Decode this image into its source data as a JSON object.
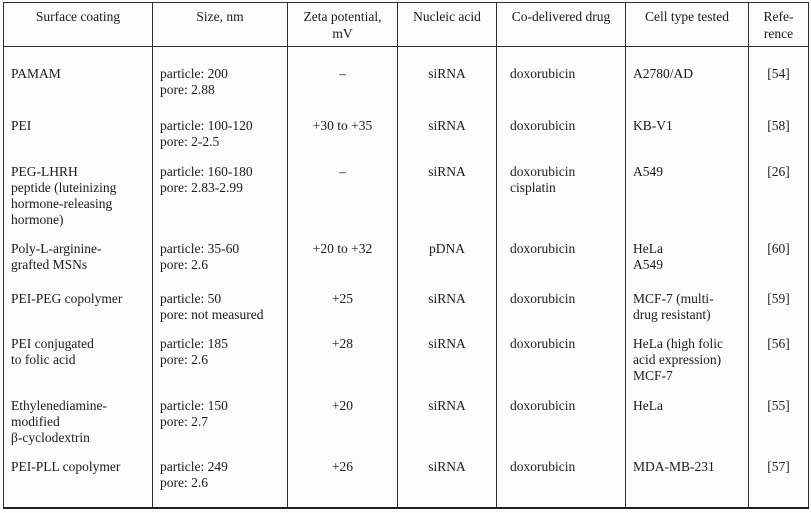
{
  "page": {
    "background_color": "#fcfcfa",
    "text_color": "#1b1b1b",
    "rule_color": "#2e2e2e"
  },
  "table": {
    "columns": [
      {
        "id": "surface_coating",
        "label_lines": [
          "Surface coating"
        ]
      },
      {
        "id": "size_nm",
        "label_lines": [
          "Size, nm"
        ]
      },
      {
        "id": "zeta_potential_mv",
        "label_lines": [
          "Zeta potential,",
          "mV"
        ]
      },
      {
        "id": "nucleic_acid",
        "label_lines": [
          "Nucleic acid"
        ]
      },
      {
        "id": "co_delivered_drug",
        "label_lines": [
          "Co-delivered drug"
        ]
      },
      {
        "id": "cell_type_tested",
        "label_lines": [
          "Cell type tested"
        ]
      },
      {
        "id": "reference",
        "label_lines": [
          "Refe-",
          "rence"
        ]
      }
    ],
    "rows": [
      {
        "surface_coating": [
          "PAMAM"
        ],
        "size_nm": [
          "particle: 200",
          "pore: 2.88"
        ],
        "zeta_potential_mv": [
          "–"
        ],
        "nucleic_acid": [
          "siRNA"
        ],
        "co_delivered_drug": [
          "doxorubicin"
        ],
        "cell_type_tested": [
          "A2780/AD"
        ],
        "reference": [
          "[54]"
        ]
      },
      {
        "surface_coating": [
          "PEI"
        ],
        "size_nm": [
          "particle: 100-120",
          "pore: 2-2.5"
        ],
        "zeta_potential_mv": [
          "+30 to +35"
        ],
        "nucleic_acid": [
          "siRNA"
        ],
        "co_delivered_drug": [
          "doxorubicin"
        ],
        "cell_type_tested": [
          "KB-V1"
        ],
        "reference": [
          "[58]"
        ]
      },
      {
        "surface_coating": [
          "PEG-LHRH",
          "peptide (luteinizing",
          "hormone-releasing",
          "hormone)"
        ],
        "size_nm": [
          "particle: 160-180",
          "pore: 2.83-2.99"
        ],
        "zeta_potential_mv": [
          "–"
        ],
        "nucleic_acid": [
          "siRNA"
        ],
        "co_delivered_drug": [
          "doxorubicin",
          "cisplatin"
        ],
        "cell_type_tested": [
          "A549"
        ],
        "reference": [
          "[26]"
        ]
      },
      {
        "surface_coating": [
          "Poly-L-arginine-",
          "grafted MSNs"
        ],
        "size_nm": [
          "particle: 35-60",
          "pore: 2.6"
        ],
        "zeta_potential_mv": [
          "+20 to +32"
        ],
        "nucleic_acid": [
          "pDNA"
        ],
        "co_delivered_drug": [
          "doxorubicin"
        ],
        "cell_type_tested": [
          "HeLa",
          "A549"
        ],
        "reference": [
          "[60]"
        ]
      },
      {
        "surface_coating": [
          "PEI-PEG copolymer"
        ],
        "size_nm": [
          "particle: 50",
          "pore: not measured"
        ],
        "zeta_potential_mv": [
          "+25"
        ],
        "nucleic_acid": [
          "siRNA"
        ],
        "co_delivered_drug": [
          "doxorubicin"
        ],
        "cell_type_tested": [
          "MCF-7 (multi-",
          "drug resistant)"
        ],
        "reference": [
          "[59]"
        ]
      },
      {
        "surface_coating": [
          "PEI conjugated",
          "to folic acid"
        ],
        "size_nm": [
          "particle: 185",
          "pore: 2.6"
        ],
        "zeta_potential_mv": [
          "+28"
        ],
        "nucleic_acid": [
          "siRNA"
        ],
        "co_delivered_drug": [
          "doxorubicin"
        ],
        "cell_type_tested": [
          "HeLa (high folic",
          "acid expression)",
          "MCF-7"
        ],
        "reference": [
          "[56]"
        ]
      },
      {
        "surface_coating": [
          "Ethylenediamine-",
          "modified",
          "β-cyclodextrin"
        ],
        "size_nm": [
          "particle: 150",
          "pore: 2.7"
        ],
        "zeta_potential_mv": [
          "+20"
        ],
        "nucleic_acid": [
          "siRNA"
        ],
        "co_delivered_drug": [
          "doxorubicin"
        ],
        "cell_type_tested": [
          "HeLa"
        ],
        "reference": [
          "[55]"
        ]
      },
      {
        "surface_coating": [
          "PEI-PLL copolymer"
        ],
        "size_nm": [
          "particle: 249",
          "pore: 2.6"
        ],
        "zeta_potential_mv": [
          "+26"
        ],
        "nucleic_acid": [
          "siRNA"
        ],
        "co_delivered_drug": [
          "doxorubicin"
        ],
        "cell_type_tested": [
          "MDA-MB-231"
        ],
        "reference": [
          "[57]"
        ]
      }
    ]
  }
}
